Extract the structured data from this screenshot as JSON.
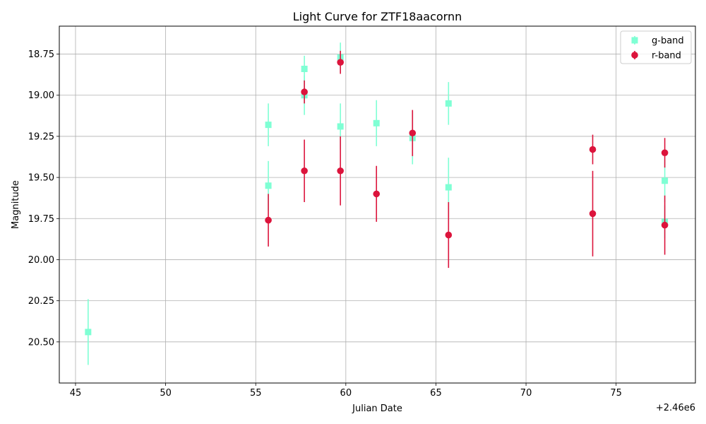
{
  "chart_data": {
    "type": "scatter",
    "title": "Light Curve for ZTF18aacornn",
    "xlabel": "Julian Date",
    "ylabel": "Magnitude",
    "x_offset_label": "+2.46e6",
    "xlim": [
      44.1,
      79.4
    ],
    "ylim": [
      20.75,
      18.58
    ],
    "y_inverted": true,
    "grid": true,
    "legend_position": "top-right",
    "x_ticks": [
      45,
      50,
      55,
      60,
      65,
      70,
      75
    ],
    "x_tick_labels": [
      "45",
      "50",
      "55",
      "60",
      "65",
      "70",
      "75"
    ],
    "y_ticks": [
      18.75,
      19.0,
      19.25,
      19.5,
      19.75,
      20.0,
      20.25,
      20.5
    ],
    "y_tick_labels": [
      "18.75",
      "19.00",
      "19.25",
      "19.50",
      "19.75",
      "20.00",
      "20.25",
      "20.50"
    ],
    "series": [
      {
        "name": "g-band",
        "color": "#7fffd4",
        "marker": "square",
        "points": [
          {
            "x": 45.7,
            "y": 20.44,
            "err": 0.2
          },
          {
            "x": 55.7,
            "y": 19.18,
            "err": 0.13
          },
          {
            "x": 55.7,
            "y": 19.55,
            "err": 0.15
          },
          {
            "x": 57.7,
            "y": 18.84,
            "err": 0.08
          },
          {
            "x": 57.7,
            "y": 19.0,
            "err": 0.12
          },
          {
            "x": 59.7,
            "y": 18.77,
            "err": 0.09
          },
          {
            "x": 59.7,
            "y": 19.19,
            "err": 0.14
          },
          {
            "x": 61.7,
            "y": 19.17,
            "err": 0.14
          },
          {
            "x": 63.7,
            "y": 19.26,
            "err": 0.16
          },
          {
            "x": 65.7,
            "y": 19.05,
            "err": 0.13
          },
          {
            "x": 65.7,
            "y": 19.56,
            "err": 0.18
          },
          {
            "x": 77.7,
            "y": 19.52,
            "err": 0.13
          },
          {
            "x": 77.7,
            "y": 19.77,
            "err": 0.1
          }
        ]
      },
      {
        "name": "r-band",
        "color": "#dc143c",
        "marker": "circle",
        "points": [
          {
            "x": 55.7,
            "y": 19.76,
            "err": 0.16
          },
          {
            "x": 57.7,
            "y": 18.98,
            "err": 0.07
          },
          {
            "x": 57.7,
            "y": 19.46,
            "err": 0.19
          },
          {
            "x": 59.7,
            "y": 18.8,
            "err": 0.07
          },
          {
            "x": 59.7,
            "y": 19.46,
            "err": 0.21
          },
          {
            "x": 61.7,
            "y": 19.6,
            "err": 0.17
          },
          {
            "x": 63.7,
            "y": 19.23,
            "err": 0.14
          },
          {
            "x": 65.7,
            "y": 19.85,
            "err": 0.2
          },
          {
            "x": 73.7,
            "y": 19.33,
            "err": 0.09
          },
          {
            "x": 73.7,
            "y": 19.72,
            "err": 0.26
          },
          {
            "x": 77.7,
            "y": 19.35,
            "err": 0.09
          },
          {
            "x": 77.7,
            "y": 19.79,
            "err": 0.18
          }
        ]
      }
    ]
  }
}
